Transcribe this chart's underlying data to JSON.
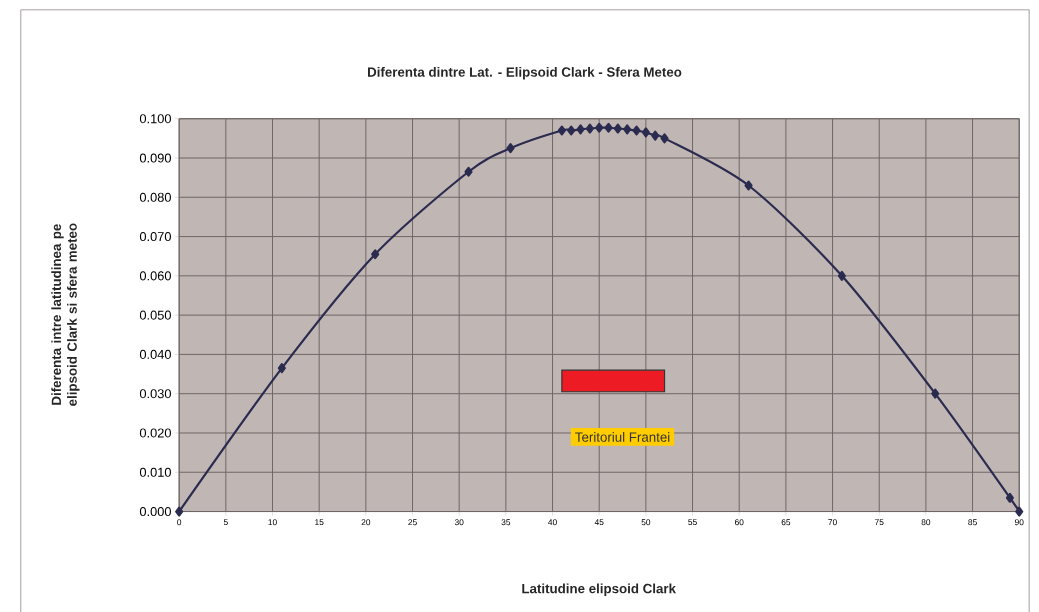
{
  "chart_data": {
    "type": "line",
    "title": "Diferenta dintre Lat. - Elipsoid Clark - Sfera Meteo",
    "xlabel": "Latitudine elipsoid Clark",
    "ylabel": "Diferenta intre latitudinea pe elipsoid Clark si sfera meteo",
    "x": [
      0,
      11,
      21,
      31,
      35.5,
      41,
      42,
      43,
      44,
      45,
      46,
      47,
      48,
      49,
      50,
      51,
      52,
      61,
      71,
      81,
      89,
      90
    ],
    "series": [
      {
        "color": "#2b2b50",
        "values": [
          0.0,
          0.0365,
          0.0655,
          0.0865,
          0.0925,
          0.097,
          0.097,
          0.0973,
          0.0975,
          0.0977,
          0.0977,
          0.0975,
          0.0973,
          0.097,
          0.0965,
          0.0957,
          0.095,
          0.083,
          0.06,
          0.03,
          0.0035,
          0.0
        ]
      }
    ],
    "xlim": [
      0,
      90
    ],
    "xticks": [
      0,
      5,
      10,
      15,
      20,
      25,
      30,
      35,
      40,
      45,
      50,
      55,
      60,
      65,
      70,
      75,
      80,
      85,
      90
    ],
    "ylim": [
      0,
      0.1
    ],
    "yticks": [
      {
        "value": 0,
        "label": "0.000"
      },
      {
        "value": 0.01,
        "label": "0.010"
      },
      {
        "value": 0.02,
        "label": "0.020"
      },
      {
        "value": 0.03,
        "label": "0.030"
      },
      {
        "value": 0.04,
        "label": "0.040"
      },
      {
        "value": 0.05,
        "label": "0.050"
      },
      {
        "value": 0.06,
        "label": "0.060"
      },
      {
        "value": 0.07,
        "label": "0.070"
      },
      {
        "value": 0.08,
        "label": "0.080"
      },
      {
        "value": 0.09,
        "label": "0.090"
      },
      {
        "value": 0.1,
        "label": "0.100"
      }
    ],
    "bands": [
      {
        "axis": "x",
        "from": 41,
        "to": 52,
        "label": "Teritoriul Frantei",
        "color": "#ed1c24"
      }
    ],
    "grid": true,
    "marker": "diamond",
    "line_style": "solid"
  }
}
